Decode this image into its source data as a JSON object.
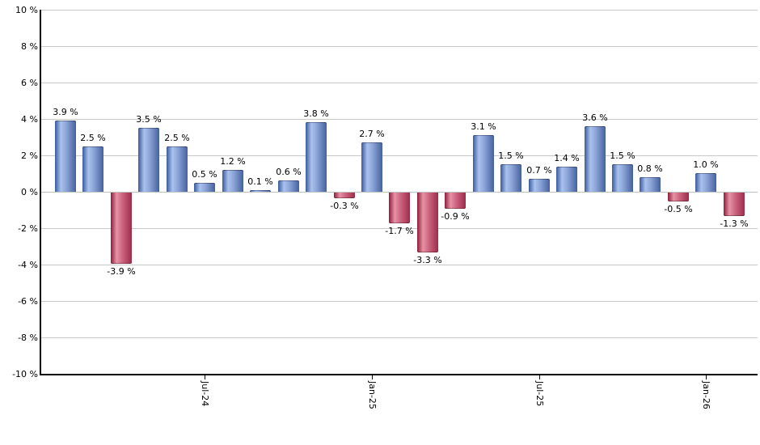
{
  "chart_data": {
    "type": "bar",
    "title": "",
    "xlabel": "",
    "ylabel": "",
    "unit": "%",
    "ylim": [
      -10,
      10
    ],
    "y_tick_step": 2,
    "grid": true,
    "legend": null,
    "y_tick_labels": [
      "10 %",
      "8 %",
      "6 %",
      "4 %",
      "2 %",
      "0 %",
      "-2 %",
      "-4 %",
      "-6 %",
      "-8 %",
      "-10 %"
    ],
    "x_tick_labels": [
      {
        "label": "Jul-24",
        "bar_index": 5
      },
      {
        "label": "Jan-25",
        "bar_index": 11
      },
      {
        "label": "Jul-25",
        "bar_index": 17
      },
      {
        "label": "Jan-26",
        "bar_index": 23
      }
    ],
    "bars": [
      {
        "value": 3.9,
        "label": "3.9 %"
      },
      {
        "value": 2.5,
        "label": "2.5 %"
      },
      {
        "value": -3.9,
        "label": "-3.9 %"
      },
      {
        "value": 3.5,
        "label": "3.5 %"
      },
      {
        "value": 2.5,
        "label": "2.5 %"
      },
      {
        "value": 0.5,
        "label": "0.5 %"
      },
      {
        "value": 1.2,
        "label": "1.2 %"
      },
      {
        "value": 0.1,
        "label": "0.1 %"
      },
      {
        "value": 0.6,
        "label": "0.6 %"
      },
      {
        "value": 3.8,
        "label": "3.8 %"
      },
      {
        "value": -0.3,
        "label": "-0.3 %"
      },
      {
        "value": 2.7,
        "label": "2.7 %"
      },
      {
        "value": -1.7,
        "label": "-1.7 %"
      },
      {
        "value": -3.3,
        "label": "-3.3 %"
      },
      {
        "value": -0.9,
        "label": "-0.9 %"
      },
      {
        "value": 3.1,
        "label": "3.1 %"
      },
      {
        "value": 1.5,
        "label": "1.5 %"
      },
      {
        "value": 0.7,
        "label": "0.7 %"
      },
      {
        "value": 1.4,
        "label": "1.4 %"
      },
      {
        "value": 3.6,
        "label": "3.6 %"
      },
      {
        "value": 1.5,
        "label": "1.5 %"
      },
      {
        "value": 0.8,
        "label": "0.8 %"
      },
      {
        "value": -0.5,
        "label": "-0.5 %"
      },
      {
        "value": 1.0,
        "label": "1.0 %"
      },
      {
        "value": -1.3,
        "label": "-1.3 %"
      }
    ],
    "colors": {
      "positive_bar_gradient": [
        "#3a5a9a",
        "#a9c2ee",
        "#8aa3d6",
        "#45619e"
      ],
      "negative_bar_gradient": [
        "#8e1c3a",
        "#e793a6",
        "#cc6480",
        "#9c2c4a"
      ],
      "gridline": "#c8c8c8",
      "zero_line": "#c0c0c0",
      "axis": "#000000",
      "text": "#000000",
      "background": "#ffffff"
    }
  }
}
